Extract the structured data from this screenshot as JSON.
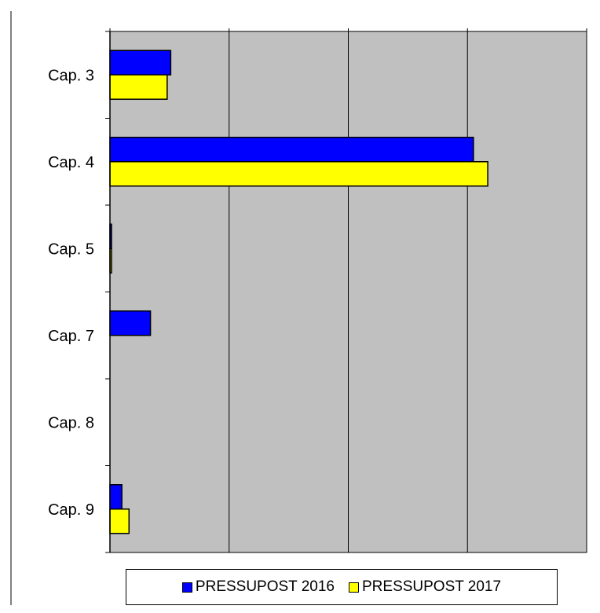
{
  "chart_data": {
    "type": "bar",
    "orientation": "horizontal",
    "categories": [
      "Cap. 3",
      "Cap. 4",
      "Cap. 5",
      "Cap. 7",
      "Cap. 8",
      "Cap. 9"
    ],
    "series": [
      {
        "name": "PRESSUPOST 2016",
        "color": "#0000ff",
        "values": [
          0.51,
          3.05,
          0.01,
          0.34,
          0,
          0.1
        ]
      },
      {
        "name": "PRESSUPOST 2017",
        "color": "#ffff00",
        "values": [
          0.48,
          3.17,
          0.01,
          0,
          0,
          0.16
        ]
      }
    ],
    "title": "",
    "xlabel": "",
    "ylabel": "",
    "xlim": [
      0,
      4
    ],
    "x_gridlines": [
      1,
      2,
      3
    ],
    "grid": true,
    "legend_position": "bottom",
    "plot_background": "#c0c0c0"
  }
}
